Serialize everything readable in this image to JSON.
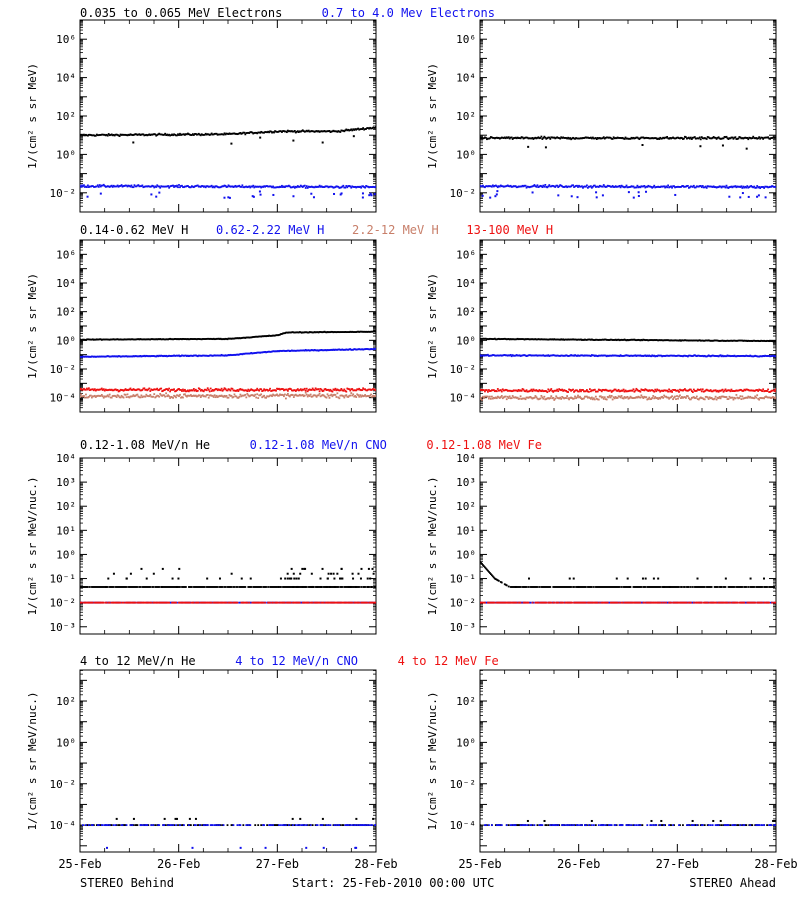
{
  "colors": {
    "black": "#000000",
    "blue": "#1111ee",
    "red": "#ee1111",
    "salmon": "#c87f6a",
    "axis": "#000000"
  },
  "footer": {
    "left": "STEREO Behind",
    "center": "Start: 25-Feb-2010 00:00 UTC",
    "right": "STEREO Ahead"
  },
  "x_ticks": [
    "25-Feb",
    "26-Feb",
    "27-Feb",
    "28-Feb"
  ],
  "chart_data": [
    {
      "type": "scatter",
      "row": 1,
      "panel": "behind",
      "ylabel": "1/(cm² s sr MeV)",
      "ylog": true,
      "ylim_exp": [
        -3,
        7
      ],
      "ytick_exps": [
        -2,
        0,
        2,
        4,
        6
      ],
      "x_range_days": [
        0,
        3
      ],
      "titles": [
        {
          "text": "0.035 to 0.065 MeV Electrons",
          "color": "#000000"
        },
        {
          "text": "0.7 to 4.0 Mev Electrons",
          "color": "#1111ee"
        }
      ],
      "series": [
        {
          "name": "0.035 to 0.065 MeV Electrons",
          "color": "#000000",
          "level_exp": [
            [
              0,
              1.0
            ],
            [
              1.5,
              1.05
            ],
            [
              2.0,
              1.2
            ],
            [
              2.6,
              1.2
            ],
            [
              2.8,
              1.3
            ],
            [
              3.0,
              1.4
            ]
          ],
          "spread": 0.08,
          "outliers": 6
        },
        {
          "name": "0.7 to 4.0 Mev Electrons",
          "color": "#1111ee",
          "level_exp": [
            [
              0,
              -1.65
            ],
            [
              3.0,
              -1.7
            ]
          ],
          "spread": 0.1,
          "outliers": 25
        }
      ]
    },
    {
      "type": "scatter",
      "row": 1,
      "panel": "ahead",
      "ylabel": "1/(cm² s sr MeV)",
      "ylog": true,
      "ylim_exp": [
        -3,
        7
      ],
      "ytick_exps": [
        -2,
        0,
        2,
        4,
        6
      ],
      "x_range_days": [
        0,
        3
      ],
      "series": [
        {
          "name": "0.035 to 0.065 MeV Electrons",
          "color": "#000000",
          "level_exp": [
            [
              0,
              0.85
            ],
            [
              3.0,
              0.85
            ]
          ],
          "spread": 0.1,
          "outliers": 6
        },
        {
          "name": "0.7 to 4.0 Mev Electrons",
          "color": "#1111ee",
          "level_exp": [
            [
              0,
              -1.65
            ],
            [
              3.0,
              -1.7
            ]
          ],
          "spread": 0.1,
          "outliers": 25
        }
      ]
    },
    {
      "type": "scatter",
      "row": 2,
      "panel": "behind",
      "ylabel": "1/(cm² s sr MeV)",
      "ylog": true,
      "ylim_exp": [
        -5,
        7
      ],
      "ytick_exps": [
        -4,
        -2,
        0,
        2,
        4,
        6
      ],
      "x_range_days": [
        0,
        3
      ],
      "titles": [
        {
          "text": "0.14-0.62 MeV H",
          "color": "#000000"
        },
        {
          "text": "0.62-2.22 MeV H",
          "color": "#1111ee"
        },
        {
          "text": "2.2-12 MeV H",
          "color": "#c87f6a"
        },
        {
          "text": "13-100 MeV H",
          "color": "#ee1111"
        }
      ],
      "series": [
        {
          "name": "2.2-12 MeV H",
          "color": "#c87f6a",
          "level_exp": [
            [
              0,
              -3.9
            ],
            [
              3.0,
              -3.85
            ]
          ],
          "spread": 0.25,
          "outliers": 0
        },
        {
          "name": "13-100 MeV H",
          "color": "#ee1111",
          "level_exp": [
            [
              0,
              -3.45
            ],
            [
              3.0,
              -3.45
            ]
          ],
          "spread": 0.18,
          "outliers": 0
        },
        {
          "name": "0.62-2.22 MeV H",
          "color": "#1111ee",
          "level_exp": [
            [
              0,
              -1.15
            ],
            [
              1.5,
              -1.05
            ],
            [
              2.0,
              -0.75
            ],
            [
              3.0,
              -0.6
            ]
          ],
          "spread": 0.05,
          "outliers": 0
        },
        {
          "name": "0.14-0.62 MeV H",
          "color": "#000000",
          "level_exp": [
            [
              0,
              0.05
            ],
            [
              1.5,
              0.1
            ],
            [
              2.0,
              0.35
            ],
            [
              2.1,
              0.55
            ],
            [
              3.0,
              0.6
            ]
          ],
          "spread": 0.04,
          "outliers": 0
        }
      ]
    },
    {
      "type": "scatter",
      "row": 2,
      "panel": "ahead",
      "ylabel": "1/(cm² s sr MeV)",
      "ylog": true,
      "ylim_exp": [
        -5,
        7
      ],
      "ytick_exps": [
        -4,
        -2,
        0,
        2,
        4,
        6
      ],
      "x_range_days": [
        0,
        3
      ],
      "series": [
        {
          "name": "2.2-12 MeV H",
          "color": "#c87f6a",
          "level_exp": [
            [
              0,
              -4.0
            ],
            [
              3.0,
              -4.0
            ]
          ],
          "spread": 0.25,
          "outliers": 0
        },
        {
          "name": "13-100 MeV H",
          "color": "#ee1111",
          "level_exp": [
            [
              0,
              -3.5
            ],
            [
              3.0,
              -3.5
            ]
          ],
          "spread": 0.18,
          "outliers": 0
        },
        {
          "name": "0.62-2.22 MeV H",
          "color": "#1111ee",
          "level_exp": [
            [
              0,
              -1.05
            ],
            [
              3.0,
              -1.1
            ]
          ],
          "spread": 0.06,
          "outliers": 0
        },
        {
          "name": "0.14-0.62 MeV H",
          "color": "#000000",
          "level_exp": [
            [
              0,
              0.1
            ],
            [
              3.0,
              -0.05
            ]
          ],
          "spread": 0.04,
          "outliers": 0
        }
      ]
    },
    {
      "type": "scatter",
      "row": 3,
      "panel": "behind",
      "ylabel": "1/(cm² s sr MeV/nuc.)",
      "ylog": true,
      "ylim_exp": [
        -3.3,
        4
      ],
      "ytick_exps": [
        -3,
        -2,
        -1,
        0,
        1,
        2,
        3,
        4
      ],
      "x_range_days": [
        0,
        3
      ],
      "titles": [
        {
          "text": "0.12-1.08 MeV/n He",
          "color": "#000000"
        },
        {
          "text": "0.12-1.08 MeV/n CNO",
          "color": "#1111ee"
        },
        {
          "text": "0.12-1.08 MeV Fe",
          "color": "#ee1111"
        }
      ],
      "series": [
        {
          "name": "0.12-1.08 MeV/n He",
          "color": "#000000",
          "level_exp": [
            [
              0,
              -1.35
            ],
            [
              3.0,
              -1.35
            ]
          ],
          "spread": 0,
          "outliers": 80,
          "discrete": [
            -1.35,
            -1.0,
            -0.8,
            -0.6
          ],
          "growth_after": 2.0
        },
        {
          "name": "0.12-1.08 MeV/n CNO",
          "color": "#1111ee",
          "level_exp": [
            [
              0,
              -2.0
            ],
            [
              3.0,
              -2.0
            ]
          ],
          "spread": 0,
          "outliers": 0
        },
        {
          "name": "0.12-1.08 MeV Fe",
          "color": "#ee1111",
          "level_exp": [
            [
              0,
              -2.0
            ],
            [
              3.0,
              -2.0
            ]
          ],
          "spread": 0,
          "outliers": 0
        }
      ]
    },
    {
      "type": "scatter",
      "row": 3,
      "panel": "ahead",
      "ylabel": "1/(cm² s sr MeV/nuc.)",
      "ylog": true,
      "ylim_exp": [
        -3.3,
        4
      ],
      "ytick_exps": [
        -3,
        -2,
        -1,
        0,
        1,
        2,
        3,
        4
      ],
      "x_range_days": [
        0,
        3
      ],
      "series": [
        {
          "name": "0.12-1.08 MeV/n He",
          "color": "#000000",
          "level_exp": [
            [
              0,
              -0.3
            ],
            [
              0.15,
              -1.0
            ],
            [
              0.3,
              -1.35
            ],
            [
              3.0,
              -1.35
            ]
          ],
          "spread": 0,
          "outliers": 20,
          "discrete": [
            -1.35,
            -1.0
          ],
          "growth_after": 9
        },
        {
          "name": "0.12-1.08 MeV/n CNO",
          "color": "#1111ee",
          "level_exp": [
            [
              0,
              -2.0
            ],
            [
              3.0,
              -2.0
            ]
          ],
          "spread": 0,
          "outliers": 0
        },
        {
          "name": "0.12-1.08 MeV Fe",
          "color": "#ee1111",
          "level_exp": [
            [
              0,
              -2.0
            ],
            [
              3.0,
              -2.0
            ]
          ],
          "spread": 0,
          "outliers": 0
        }
      ]
    },
    {
      "type": "scatter",
      "row": 4,
      "panel": "behind",
      "ylabel": "1/(cm² s sr MeV/nuc.)",
      "ylog": true,
      "ylim_exp": [
        -5.3,
        3.5
      ],
      "ytick_exps": [
        -4,
        -2,
        0,
        2
      ],
      "x_range_days": [
        0,
        3
      ],
      "titles": [
        {
          "text": "4 to 12 MeV/n He",
          "color": "#000000"
        },
        {
          "text": "4 to 12 MeV/n CNO",
          "color": "#1111ee"
        },
        {
          "text": "4 to 12 MeV Fe",
          "color": "#ee1111"
        }
      ],
      "series": [
        {
          "name": "4 to 12 MeV/n He",
          "color": "#000000",
          "level_exp": [
            [
              0,
              -4.0
            ],
            [
              3.0,
              -4.0
            ]
          ],
          "spread": 0,
          "outliers": 12,
          "discrete": [
            -3.7
          ],
          "growth_after": 9
        },
        {
          "name": "4 to 12 MeV/n CNO",
          "color": "#1111ee",
          "level_exp": [
            [
              0,
              -4.0
            ],
            [
              3.0,
              -4.0
            ]
          ],
          "spread": 0,
          "outliers": 8,
          "discrete": [
            -5.1
          ],
          "growth_after": 9
        }
      ]
    },
    {
      "type": "scatter",
      "row": 4,
      "panel": "ahead",
      "ylabel": "1/(cm² s sr MeV/nuc.)",
      "ylog": true,
      "ylim_exp": [
        -5.3,
        3.5
      ],
      "ytick_exps": [
        -4,
        -2,
        0,
        2
      ],
      "x_range_days": [
        0,
        3
      ],
      "series": [
        {
          "name": "4 to 12 MeV/n He",
          "color": "#000000",
          "level_exp": [
            [
              0,
              -4.0
            ],
            [
              3.0,
              -4.0
            ]
          ],
          "spread": 0,
          "outliers": 10,
          "discrete": [
            -3.8
          ],
          "growth_after": 9
        },
        {
          "name": "4 to 12 MeV/n CNO",
          "color": "#1111ee",
          "level_exp": [
            [
              0,
              -4.0
            ],
            [
              3.0,
              -4.0
            ]
          ],
          "spread": 0,
          "outliers": 0
        }
      ]
    }
  ]
}
